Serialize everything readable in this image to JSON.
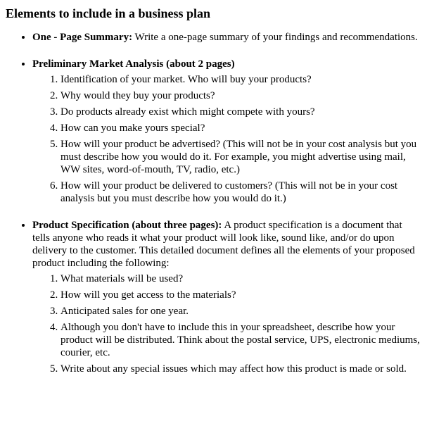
{
  "title": "Elements to include in a business plan",
  "sections": [
    {
      "lead": "One - Page Summary:",
      "text": " Write a one-page summary of your findings and recommendations.",
      "items": []
    },
    {
      "lead": "Preliminary Market Analysis (about 2 pages)",
      "text": "",
      "items": [
        "Identification of your market. Who will buy your products?",
        "Why would they buy your products?",
        "Do products already exist which might compete with yours?",
        "How can you make yours special?",
        "How will your product be advertised? (This will not be in your cost analysis but you must describe how you would do it. For example, you might advertise using mail, WW sites, word-of-mouth, TV, radio, etc.)",
        "How will your product be delivered to customers? (This will not be in your cost analysis but you must describe how you would do it.)"
      ]
    },
    {
      "lead": "Product Specification (about three pages):",
      "text": " A product specification is a document that tells anyone who reads it what your product will look like, sound like, and/or do upon delivery to the customer. This detailed document defines all the elements of your proposed product including the following:",
      "items": [
        "What materials will be used?",
        "How will you get access to the materials?",
        "Anticipated sales for one year.",
        "Although you don't have to include this in your spreadsheet, describe how your product will be distributed. Think about the postal service, UPS, electronic mediums, courier, etc.",
        "Write about any special issues which may affect how this product is made or sold."
      ]
    }
  ]
}
